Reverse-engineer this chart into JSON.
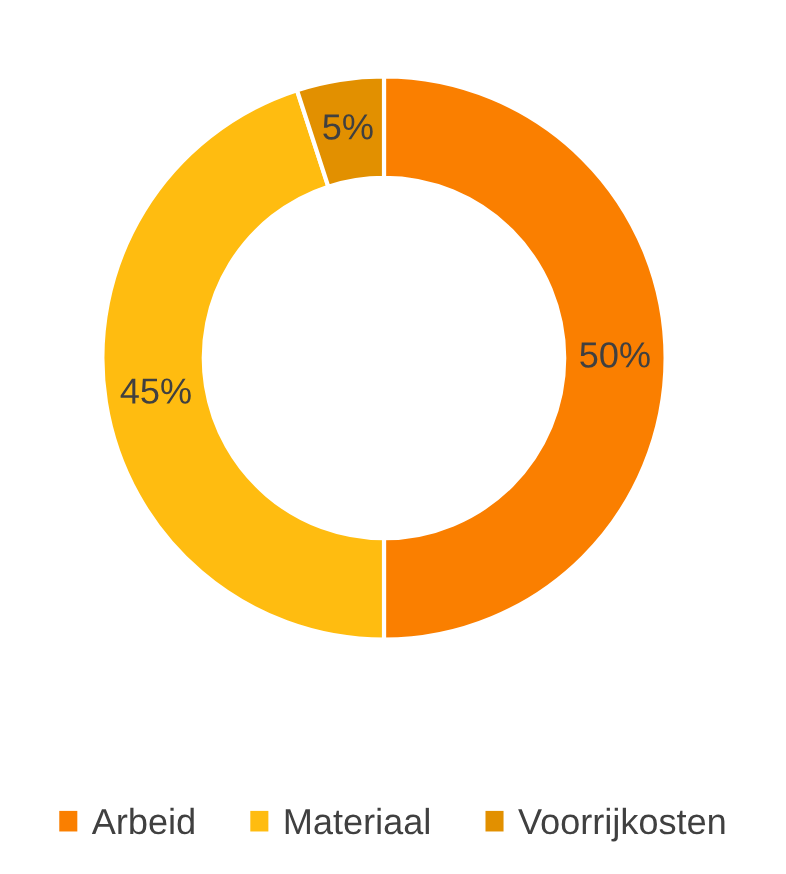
{
  "chart_data": {
    "type": "donut",
    "categories": [
      "Arbeid",
      "Materiaal",
      "Voorrijkosten"
    ],
    "values": [
      50,
      45,
      5
    ],
    "colors": [
      "#fa7f00",
      "#ffbc10",
      "#e29000"
    ],
    "value_labels": [
      "50%",
      "45%",
      "5%"
    ],
    "legend": "bottom"
  }
}
